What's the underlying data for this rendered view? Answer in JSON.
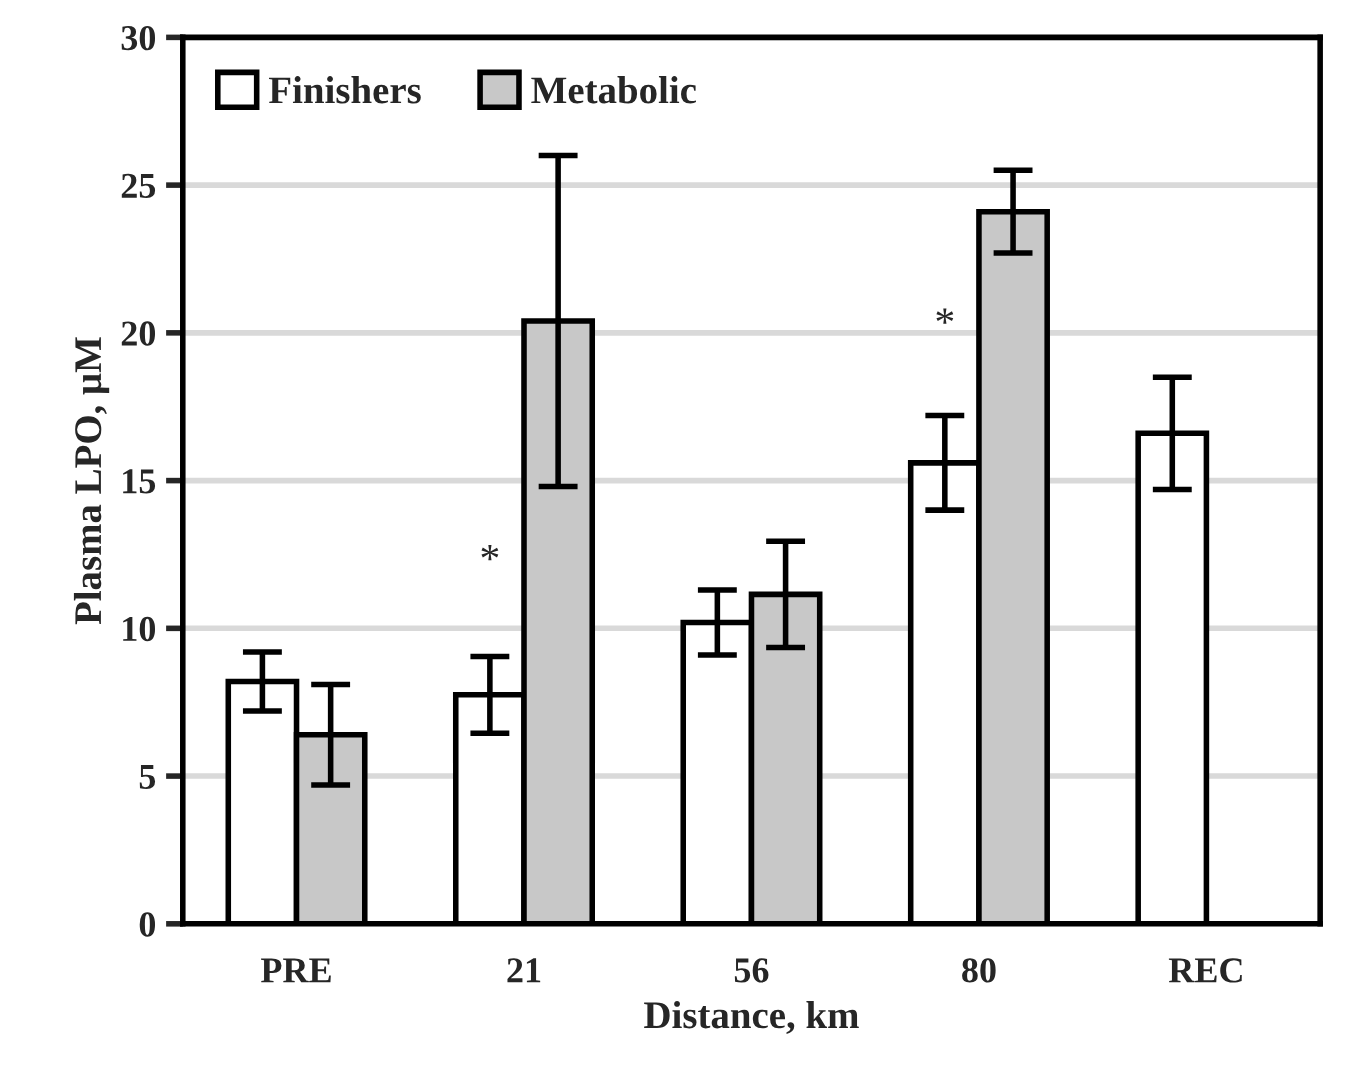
{
  "chart_data": {
    "type": "bar",
    "xlabel": "Distance, km",
    "ylabel": "Plasma LPO, μM",
    "categories": [
      "PRE",
      "21",
      "56",
      "80",
      "REC"
    ],
    "series": [
      {
        "name": "Finishers",
        "color": "#ffffff",
        "values": [
          8.2,
          7.75,
          10.2,
          15.6,
          16.6
        ],
        "errors": [
          1.0,
          1.3,
          1.1,
          1.6,
          1.9
        ]
      },
      {
        "name": "Metabolic",
        "color": "#c8c8c8",
        "values": [
          6.4,
          20.4,
          11.15,
          24.1,
          null
        ],
        "errors": [
          1.7,
          5.6,
          1.8,
          1.4,
          null
        ]
      }
    ],
    "ylim": [
      0,
      30
    ],
    "yticks": [
      0,
      5,
      10,
      15,
      20,
      25,
      30
    ],
    "grid": "y",
    "legend": "top left",
    "annotations": [
      {
        "text": "*",
        "x": "21",
        "y": 11.6
      },
      {
        "text": "*",
        "x": "80",
        "y": 19.6
      }
    ]
  }
}
